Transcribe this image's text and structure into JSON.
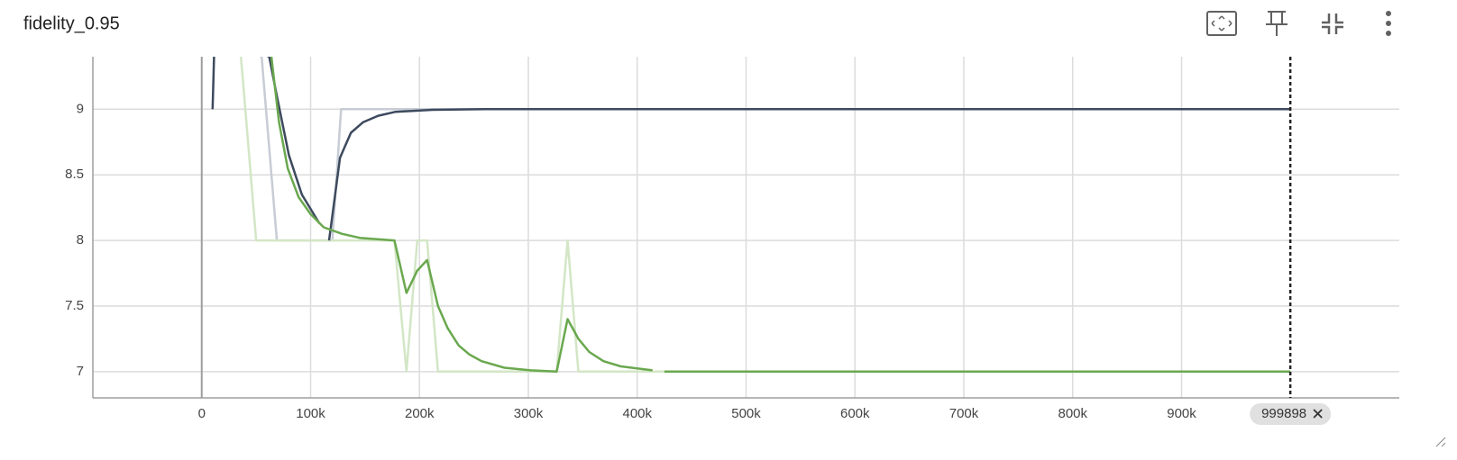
{
  "chart_data": {
    "type": "line",
    "title": "fidelity_0.95",
    "xlim": [
      -100000,
      1100000
    ],
    "ylim": [
      6.8,
      9.4
    ],
    "xticks": [
      {
        "value": 0,
        "label": "0"
      },
      {
        "value": 100000,
        "label": "100k"
      },
      {
        "value": 200000,
        "label": "200k"
      },
      {
        "value": 300000,
        "label": "300k"
      },
      {
        "value": 400000,
        "label": "400k"
      },
      {
        "value": 500000,
        "label": "500k"
      },
      {
        "value": 600000,
        "label": "600k"
      },
      {
        "value": 700000,
        "label": "700k"
      },
      {
        "value": 800000,
        "label": "800k"
      },
      {
        "value": 900000,
        "label": "900k"
      }
    ],
    "yticks": [
      7,
      7.5,
      8,
      8.5,
      9
    ],
    "grid": true,
    "cursor_x": 999898,
    "series": [
      {
        "color": "#c7ccd5",
        "x": [
          10000,
          55000,
          69000,
          120000,
          128000,
          999898
        ],
        "values": [
          9.6,
          9.4,
          8,
          8,
          9,
          9
        ]
      },
      {
        "color": "#d3e6c6",
        "x": [
          36000,
          40000,
          50000,
          177000,
          188000,
          198000,
          207000,
          217000,
          326000,
          336000,
          346000,
          999898
        ],
        "values": [
          9.4,
          9,
          8,
          8,
          7,
          8,
          8,
          7,
          7,
          8,
          7,
          7
        ]
      },
      {
        "color": "#3d4a5e",
        "x": [
          10000,
          12000,
          62000,
          69000,
          80000,
          92000,
          108000,
          112000,
          117000,
          127000,
          137000,
          148000,
          162000,
          178000,
          212000,
          260000,
          999898
        ],
        "values": [
          9,
          9.6,
          9.4,
          9.1,
          8.65,
          8.35,
          8.13,
          null,
          8,
          8.63,
          8.82,
          8.9,
          8.95,
          8.98,
          8.995,
          9,
          9
        ]
      },
      {
        "color": "#6aa84f",
        "x": [
          64000,
          71000,
          79000,
          89000,
          100000,
          112000,
          129000,
          145000,
          177000,
          188000,
          198000,
          207000,
          217000,
          226000,
          236000,
          246000,
          257000,
          278000,
          302000,
          326000,
          336000,
          346000,
          356000,
          369000,
          385000,
          414000,
          420000,
          425000,
          999898
        ],
        "values": [
          9.4,
          8.9,
          8.55,
          8.33,
          8.2,
          8.1,
          8.05,
          8.02,
          8,
          7.6,
          7.77,
          7.85,
          7.5,
          7.33,
          7.2,
          7.13,
          7.08,
          7.03,
          7.01,
          7,
          7.4,
          7.25,
          7.15,
          7.08,
          7.04,
          7.01,
          null,
          7,
          7
        ]
      }
    ]
  }
}
